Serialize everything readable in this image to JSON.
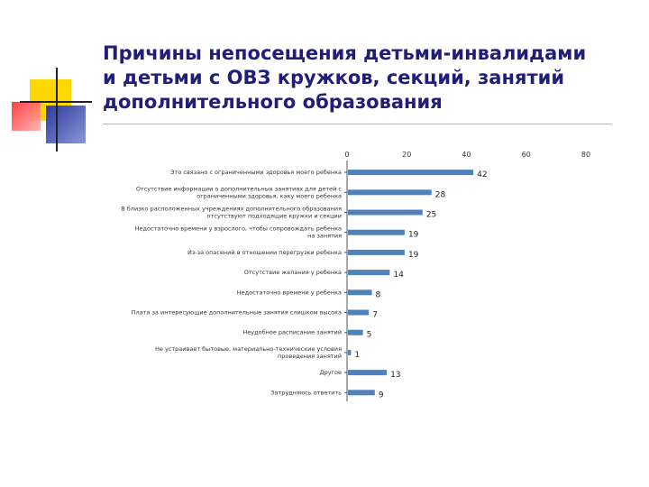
{
  "slide": {
    "title_lines": [
      "Причины непосещения детьми-инвалидами",
      "и детьми с ОВЗ кружков, секций, занятий",
      "дополнительного образования"
    ]
  },
  "colors": {
    "title": "#1f1f7a",
    "bar": "#4f81bd",
    "deco_yellow": "#ffd700",
    "deco_red": "#ff3b3b",
    "deco_blue": "#3344aa"
  },
  "chart_data": {
    "type": "bar",
    "orientation": "horizontal",
    "categories": [
      "Это связано с ограниченными здоровья моего ребенка",
      "Отсутствие информации о дополнительных занятиях для детей с ограниченными здоровья, каку моего ребенка",
      "В близко расположенных учреждениях дополнительного образования отсутствуют подходящие кружки и секции",
      "Недостаточно времени у взрослого, чтобы сопровождать ребенка на занятия",
      "Из-за опасений в отношении перегрузки ребенка",
      "Отсутствие желания у ребенка",
      "Недостаточно времени у ребенка",
      "Плата за интересующие дополнительные занятия слишком высока",
      "Неудобное расписание занятий",
      "Не устраивает бытовые, материально-технические условия проведения занятий",
      "Другое",
      "Затрудняюсь ответить"
    ],
    "values": [
      42,
      28,
      25,
      19,
      19,
      14,
      8,
      7,
      5,
      1,
      13,
      9
    ],
    "x_ticks": [
      "0",
      "20",
      "40",
      "60",
      "80"
    ],
    "xlim": [
      0,
      80
    ],
    "xlabel": "",
    "ylabel": "",
    "grid": false,
    "legend": "none"
  }
}
